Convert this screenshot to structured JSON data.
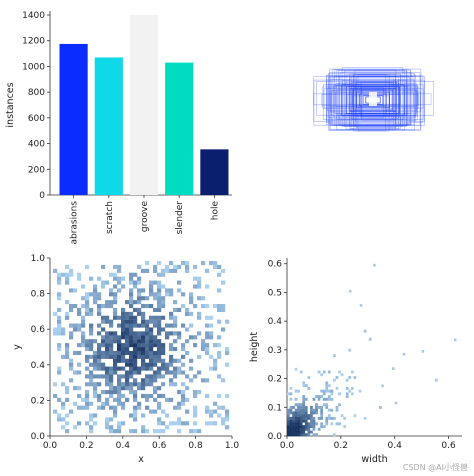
{
  "watermark": "CSDN @AI小怪兽",
  "chart_data": [
    {
      "type": "bar",
      "categories": [
        "abrasions",
        "scratch",
        "groove",
        "slender",
        "hole"
      ],
      "values": [
        1175,
        1070,
        1410,
        1030,
        355
      ],
      "colors": [
        "#0a2cff",
        "#0fd8e8",
        "#f2f2f2",
        "#00dcc0",
        "#0a1f6e"
      ],
      "title": "",
      "xlabel": "",
      "ylabel": "instances",
      "ylim": [
        0,
        1400
      ],
      "yticks": [
        "0",
        "200",
        "400",
        "600",
        "800",
        "1000",
        "1200",
        "1400"
      ],
      "grid": false
    },
    {
      "type": "scatter",
      "description_kind": "box-overlay",
      "color": "#1a3cff",
      "x": [
        0.5,
        0.5,
        0.5,
        0.5,
        0.5,
        0.5,
        0.5,
        0.5
      ],
      "y": [
        0.5,
        0.5,
        0.5,
        0.5,
        0.5,
        0.5,
        0.5,
        0.5
      ],
      "width": [
        0.95,
        0.8,
        0.7,
        0.6,
        0.5,
        0.4,
        0.3,
        0.22
      ],
      "height": [
        0.9,
        0.78,
        0.66,
        0.58,
        0.46,
        0.36,
        0.26,
        0.18
      ]
    },
    {
      "type": "heatmap",
      "xlabel": "x",
      "ylabel": "y",
      "xlim": [
        0,
        1
      ],
      "ylim": [
        0,
        1
      ],
      "xticks": [
        "0.0",
        "0.2",
        "0.4",
        "0.6",
        "0.8",
        "1.0"
      ],
      "yticks": [
        "0.0",
        "0.2",
        "0.4",
        "0.6",
        "0.8",
        "1.0"
      ],
      "peak": [
        0.45,
        0.5
      ],
      "color": "#1f77d4"
    },
    {
      "type": "heatmap",
      "xlabel": "width",
      "ylabel": "height",
      "xlim": [
        0,
        0.65
      ],
      "ylim": [
        0,
        0.62
      ],
      "xticks": [
        "0.0",
        "0.2",
        "0.4",
        "0.6"
      ],
      "yticks": [
        "0.0",
        "0.1",
        "0.2",
        "0.3",
        "0.4",
        "0.5",
        "0.6"
      ],
      "peak": [
        0.06,
        0.07
      ],
      "color": "#1f77d4"
    }
  ]
}
